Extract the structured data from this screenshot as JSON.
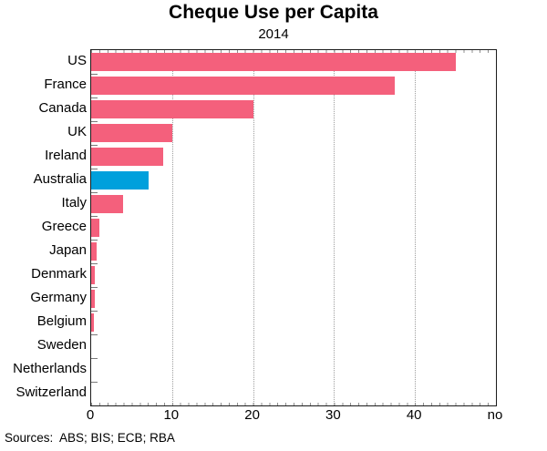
{
  "page": {
    "sources": "Sources:  ABS; BIS; ECB; RBA"
  },
  "chart_data": {
    "type": "bar",
    "orientation": "horizontal",
    "title": "Cheque Use per Capita",
    "subtitle": "2014",
    "categories": [
      "US",
      "France",
      "Canada",
      "UK",
      "Ireland",
      "Australia",
      "Italy",
      "Greece",
      "Japan",
      "Denmark",
      "Germany",
      "Belgium",
      "Sweden",
      "Netherlands",
      "Switzerland"
    ],
    "values": [
      45,
      37.5,
      20,
      10,
      8.9,
      7.1,
      3.9,
      1.0,
      0.65,
      0.5,
      0.45,
      0.3,
      0,
      0,
      0
    ],
    "highlight_category": "Australia",
    "bar_color": "#f4607c",
    "highlight_color": "#00a0dc",
    "xlabel": "",
    "ylabel": "",
    "xlim": [
      0,
      50
    ],
    "x_ticks": [
      0,
      10,
      20,
      30,
      40
    ],
    "x_unit_label": "no",
    "grid": "vertical dotted gridlines at major x ticks",
    "legend": "none",
    "frame": "full box"
  }
}
